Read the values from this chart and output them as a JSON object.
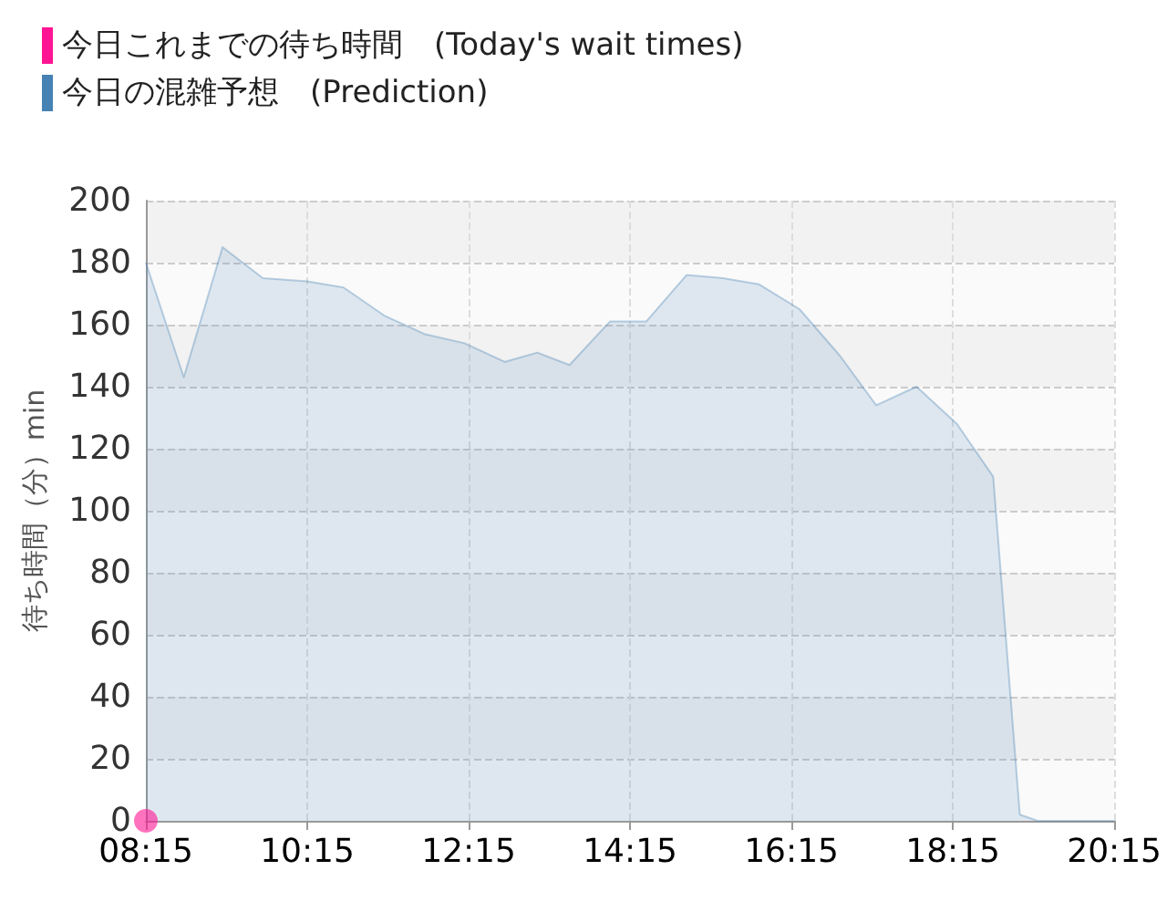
{
  "chart_data": {
    "type": "area",
    "ylabel": "待ち時間（分）min",
    "xlim": [
      8.25,
      20.25
    ],
    "xticks": [
      {
        "value": 8.25,
        "label": "08:15"
      },
      {
        "value": 10.25,
        "label": "10:15"
      },
      {
        "value": 12.25,
        "label": "12:15"
      },
      {
        "value": 14.25,
        "label": "14:15"
      },
      {
        "value": 16.25,
        "label": "16:15"
      },
      {
        "value": 18.25,
        "label": "18:15"
      },
      {
        "value": 20.25,
        "label": "20:15"
      }
    ],
    "ylim": [
      0,
      200
    ],
    "yticks": [
      0,
      20,
      40,
      60,
      80,
      100,
      120,
      140,
      160,
      180,
      200
    ],
    "grid": true,
    "legend": "top left",
    "series": [
      {
        "name": "今日これまでの待ち時間　(Today's wait times)",
        "type": "scatter",
        "marker": "circle",
        "color": "#ff1493",
        "x": [
          8.25
        ],
        "values": [
          0
        ]
      },
      {
        "name": "今日の混雑予想　(Prediction)",
        "marker": "none",
        "color": "#4682b4",
        "x": [
          8.25,
          8.72,
          9.2,
          9.35,
          9.7,
          10.25,
          10.7,
          11.2,
          11.7,
          12.2,
          12.7,
          13.1,
          13.5,
          14.0,
          14.45,
          14.95,
          15.4,
          15.85,
          16.35,
          16.85,
          17.3,
          17.8,
          18.3,
          18.75,
          19.08,
          19.3,
          19.7,
          20.25
        ],
        "values": [
          180,
          143,
          185,
          182,
          175,
          174,
          172,
          163,
          157,
          154,
          148,
          151,
          147,
          161,
          161,
          176,
          175,
          173,
          165,
          150,
          134,
          140,
          128,
          111,
          2,
          0,
          0,
          0
        ]
      }
    ]
  }
}
